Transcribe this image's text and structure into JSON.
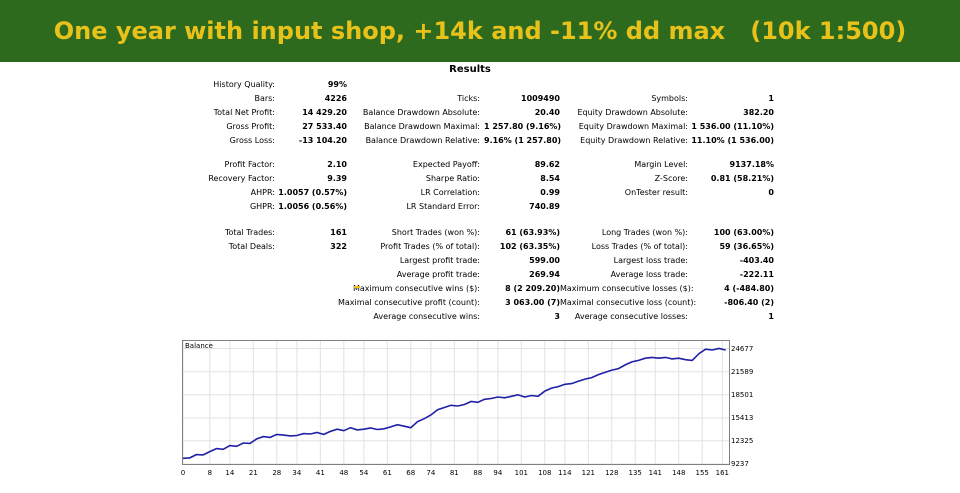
{
  "banner": {
    "title": "One year with input shop, +14k and -11% dd max   (10k 1:500)"
  },
  "results": {
    "title": "Results",
    "rows": [
      {
        "c1": {
          "label": "History Quality:",
          "value": "99%"
        }
      },
      {
        "c1": {
          "label": "Bars:",
          "value": "4226"
        },
        "c2": {
          "label": "Ticks:",
          "value": "1009490"
        },
        "c3": {
          "label": "Symbols:",
          "value": "1"
        }
      },
      {
        "c1": {
          "label": "Total Net Profit:",
          "value": "14 429.20"
        },
        "c2": {
          "label": "Balance Drawdown Absolute:",
          "value": "20.40"
        },
        "c3": {
          "label": "Equity Drawdown Absolute:",
          "value": "382.20"
        }
      },
      {
        "c1": {
          "label": "Gross Profit:",
          "value": "27 533.40"
        },
        "c2": {
          "label": "Balance Drawdown Maximal:",
          "value": "1 257.80 (9.16%)"
        },
        "c3": {
          "label": "Equity Drawdown Maximal:",
          "value": "1 536.00 (11.10%)"
        }
      },
      {
        "c1": {
          "label": "Gross Loss:",
          "value": "-13 104.20"
        },
        "c2": {
          "label": "Balance Drawdown Relative:",
          "value": "9.16% (1 257.80)"
        },
        "c3": {
          "label": "Equity Drawdown Relative:",
          "value": "11.10% (1 536.00)"
        }
      },
      {
        "c1": {
          "label": "Profit Factor:",
          "value": "2.10"
        },
        "c2": {
          "label": "Expected Payoff:",
          "value": "89.62"
        },
        "c3": {
          "label": "Margin Level:",
          "value": "9137.18%"
        }
      },
      {
        "c1": {
          "label": "Recovery Factor:",
          "value": "9.39"
        },
        "c2": {
          "label": "Sharpe Ratio:",
          "value": "8.54"
        },
        "c3": {
          "label": "Z-Score:",
          "value": "0.81 (58.21%)"
        }
      },
      {
        "c1": {
          "label": "AHPR:",
          "value": "1.0057 (0.57%)"
        },
        "c2": {
          "label": "LR Correlation:",
          "value": "0.99"
        },
        "c3": {
          "label": "OnTester result:",
          "value": "0"
        }
      },
      {
        "c1": {
          "label": "GHPR:",
          "value": "1.0056 (0.56%)"
        },
        "c2": {
          "label": "LR Standard Error:",
          "value": "740.89"
        }
      },
      {
        "c1": {
          "label": "Total Trades:",
          "value": "161"
        },
        "c2": {
          "label": "Short Trades (won %):",
          "value": "61 (63.93%)"
        },
        "c3": {
          "label": "Long Trades (won %):",
          "value": "100 (63.00%)"
        }
      },
      {
        "c1": {
          "label": "Total Deals:",
          "value": "322"
        },
        "c2": {
          "label": "Profit Trades (% of total):",
          "value": "102 (63.35%)"
        },
        "c3": {
          "label": "Loss Trades (% of total):",
          "value": "59 (36.65%)"
        }
      },
      {
        "c2": {
          "label": "Largest profit trade:",
          "value": "599.00"
        },
        "c3": {
          "label": "Largest loss trade:",
          "value": "-403.40"
        }
      },
      {
        "c2": {
          "label": "Average profit trade:",
          "value": "269.94"
        },
        "c3": {
          "label": "Average loss trade:",
          "value": "-222.11"
        }
      },
      {
        "c2": {
          "label": "Maximum consecutive wins ($):",
          "value": "8 (2 209.20)"
        },
        "c3": {
          "label": "Maximum consecutive losses ($):",
          "value": "4 (-484.80)"
        }
      },
      {
        "c2": {
          "label": "Maximal consecutive profit (count):",
          "value": "3 063.00 (7)"
        },
        "c3": {
          "label": "Maximal consecutive loss (count):",
          "value": "-806.40 (2)"
        }
      },
      {
        "c2": {
          "label": "Average consecutive wins:",
          "value": "3"
        },
        "c3": {
          "label": "Average consecutive losses:",
          "value": "1"
        }
      }
    ]
  },
  "chart_data": {
    "type": "line",
    "title": "Balance",
    "xlabel": "",
    "ylabel": "",
    "line_color": "#1f1fa8",
    "x_ticks": [
      "0",
      "8",
      "14",
      "21",
      "28",
      "34",
      "41",
      "48",
      "54",
      "61",
      "68",
      "74",
      "81",
      "88",
      "94",
      "101",
      "108",
      "114",
      "121",
      "128",
      "135",
      "141",
      "148",
      "155",
      "161"
    ],
    "y_ticks": [
      "24677",
      "21589",
      "18501",
      "15413",
      "12325",
      "9237"
    ],
    "xlim": [
      0,
      163
    ],
    "ylim": [
      9237,
      25700
    ],
    "series": [
      {
        "x": [
          0,
          2,
          4,
          6,
          8,
          10,
          12,
          14,
          16,
          18,
          20,
          22,
          24,
          26,
          28,
          30,
          32,
          34,
          36,
          38,
          40,
          42,
          44,
          46,
          48,
          50,
          52,
          54,
          56,
          58,
          60,
          62,
          64,
          66,
          68,
          70,
          72,
          74,
          76,
          78,
          80,
          82,
          84,
          86,
          88,
          90,
          92,
          94,
          96,
          98,
          100,
          102,
          104,
          106,
          108,
          110,
          112,
          114,
          116,
          118,
          120,
          122,
          124,
          126,
          128,
          130,
          132,
          134,
          136,
          138,
          140,
          142,
          144,
          146,
          148,
          150,
          152,
          154,
          156,
          158,
          160,
          162
        ],
        "y": [
          10000,
          10050,
          10500,
          10450,
          10900,
          11300,
          11200,
          11700,
          11600,
          12050,
          12000,
          12600,
          12900,
          12800,
          13200,
          13100,
          13000,
          13050,
          13300,
          13250,
          13450,
          13200,
          13600,
          13900,
          13700,
          14100,
          13800,
          13900,
          14050,
          13850,
          13950,
          14200,
          14500,
          14300,
          14100,
          14900,
          15300,
          15800,
          16500,
          16800,
          17100,
          17000,
          17200,
          17600,
          17500,
          17900,
          18000,
          18200,
          18100,
          18300,
          18500,
          18200,
          18400,
          18300,
          19000,
          19400,
          19600,
          19900,
          20000,
          20300,
          20600,
          20800,
          21200,
          21500,
          21800,
          22000,
          22500,
          22900,
          23100,
          23400,
          23500,
          23400,
          23500,
          23300,
          23400,
          23200,
          23100,
          24000,
          24600,
          24500,
          24700,
          24500
        ]
      }
    ]
  }
}
